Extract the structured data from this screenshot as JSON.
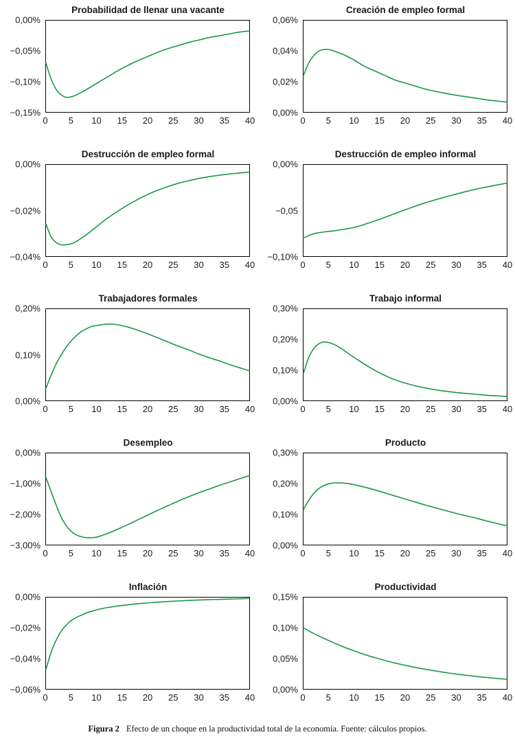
{
  "colors": {
    "line": "#1a9648",
    "axis": "#000000",
    "text": "#1a1a1a"
  },
  "caption": {
    "label": "Figura 2",
    "text": "Efecto de un choque en la productividad total de la economía. Fuente: cálculos propios."
  },
  "chart_data": [
    {
      "type": "line",
      "title": "Probabilidad de llenar una vacante",
      "xlim": [
        0,
        40
      ],
      "ylim": [
        -0.15,
        0
      ],
      "xticks": [
        0,
        5,
        10,
        15,
        20,
        25,
        30,
        35,
        40
      ],
      "yticks": [
        [
          0,
          "0,00%"
        ],
        [
          -0.05,
          "−0,05%"
        ],
        [
          -0.1,
          "−0,10%"
        ],
        [
          -0.15,
          "−0,15%"
        ]
      ],
      "x": [
        0,
        1,
        2,
        3,
        4,
        5,
        6,
        8,
        10,
        12,
        14,
        16,
        18,
        20,
        22,
        24,
        26,
        28,
        30,
        32,
        34,
        36,
        38,
        40
      ],
      "y": [
        -0.07,
        -0.096,
        -0.113,
        -0.122,
        -0.126,
        -0.125,
        -0.122,
        -0.113,
        -0.103,
        -0.093,
        -0.083,
        -0.074,
        -0.066,
        -0.059,
        -0.052,
        -0.046,
        -0.041,
        -0.036,
        -0.032,
        -0.028,
        -0.025,
        -0.022,
        -0.019,
        -0.017
      ]
    },
    {
      "type": "line",
      "title": "Creación de empleo formal",
      "xlim": [
        0,
        40
      ],
      "ylim": [
        0,
        0.06
      ],
      "xticks": [
        0,
        5,
        10,
        15,
        20,
        25,
        30,
        35,
        40
      ],
      "yticks": [
        [
          0.06,
          "0,06%"
        ],
        [
          0.04,
          "0,04%"
        ],
        [
          0.02,
          "0,02%"
        ],
        [
          0,
          "0,00%"
        ]
      ],
      "x": [
        0,
        1,
        2,
        3,
        4,
        5,
        6,
        8,
        10,
        12,
        14,
        16,
        18,
        20,
        22,
        24,
        26,
        28,
        30,
        32,
        34,
        36,
        38,
        40
      ],
      "y": [
        0.024,
        0.032,
        0.037,
        0.04,
        0.041,
        0.041,
        0.04,
        0.0375,
        0.034,
        0.03,
        0.027,
        0.024,
        0.021,
        0.019,
        0.017,
        0.015,
        0.0135,
        0.0122,
        0.011,
        0.01,
        0.009,
        0.008,
        0.0072,
        0.0065
      ]
    },
    {
      "type": "line",
      "title": "Destrucción de empleo formal",
      "xlim": [
        0,
        40
      ],
      "ylim": [
        -0.04,
        0
      ],
      "xticks": [
        0,
        5,
        10,
        15,
        20,
        25,
        30,
        35,
        40
      ],
      "yticks": [
        [
          0,
          "0,00%"
        ],
        [
          -0.02,
          "−0,02%"
        ],
        [
          -0.04,
          "−0,04%"
        ]
      ],
      "x": [
        0,
        1,
        2,
        3,
        4,
        5,
        6,
        8,
        10,
        12,
        14,
        16,
        18,
        20,
        22,
        24,
        26,
        28,
        30,
        32,
        34,
        36,
        38,
        40
      ],
      "y": [
        -0.026,
        -0.0315,
        -0.034,
        -0.035,
        -0.035,
        -0.0345,
        -0.0335,
        -0.0305,
        -0.027,
        -0.0235,
        -0.0205,
        -0.0177,
        -0.0152,
        -0.013,
        -0.0111,
        -0.0095,
        -0.0081,
        -0.007,
        -0.006,
        -0.0052,
        -0.0046,
        -0.004,
        -0.0036,
        -0.0032
      ]
    },
    {
      "type": "line",
      "title": "Destrucción de empleo informal",
      "xlim": [
        0,
        40
      ],
      "ylim": [
        -0.1,
        0
      ],
      "xticks": [
        0,
        5,
        10,
        15,
        20,
        25,
        30,
        35,
        40
      ],
      "yticks": [
        [
          0,
          "0,00%"
        ],
        [
          -0.05,
          "−0,05"
        ],
        [
          -0.1,
          "−0,10%"
        ]
      ],
      "x": [
        0,
        2,
        4,
        6,
        8,
        10,
        12,
        14,
        16,
        18,
        20,
        22,
        24,
        26,
        28,
        30,
        32,
        34,
        36,
        38,
        40
      ],
      "y": [
        -0.08,
        -0.0755,
        -0.0735,
        -0.0722,
        -0.0705,
        -0.0685,
        -0.0652,
        -0.0615,
        -0.0575,
        -0.0533,
        -0.0492,
        -0.0452,
        -0.0415,
        -0.0382,
        -0.035,
        -0.0321,
        -0.0292,
        -0.0266,
        -0.0243,
        -0.0221,
        -0.02
      ]
    },
    {
      "type": "line",
      "title": "Trabajadores formales",
      "xlim": [
        0,
        40
      ],
      "ylim": [
        0,
        0.2
      ],
      "xticks": [
        0,
        5,
        10,
        15,
        20,
        25,
        30,
        35,
        40
      ],
      "yticks": [
        [
          0.2,
          "0,20%"
        ],
        [
          0.1,
          "0,10%"
        ],
        [
          0,
          "0,00%"
        ]
      ],
      "x": [
        0,
        1,
        2,
        3,
        4,
        5,
        6,
        7,
        8,
        9,
        10,
        12,
        14,
        16,
        18,
        20,
        22,
        24,
        26,
        28,
        30,
        32,
        34,
        36,
        38,
        40
      ],
      "y": [
        0.027,
        0.055,
        0.08,
        0.1,
        0.117,
        0.131,
        0.142,
        0.151,
        0.157,
        0.162,
        0.164,
        0.167,
        0.166,
        0.161,
        0.154,
        0.146,
        0.137,
        0.128,
        0.119,
        0.111,
        0.102,
        0.094,
        0.087,
        0.079,
        0.072,
        0.065
      ]
    },
    {
      "type": "line",
      "title": "Trabajo informal",
      "xlim": [
        0,
        40
      ],
      "ylim": [
        0,
        0.3
      ],
      "xticks": [
        0,
        5,
        10,
        15,
        20,
        25,
        30,
        35,
        40
      ],
      "yticks": [
        [
          0.3,
          "0,30%"
        ],
        [
          0.2,
          "0,20%"
        ],
        [
          0.1,
          "0,10%"
        ],
        [
          0,
          "0,00%"
        ]
      ],
      "x": [
        0,
        1,
        2,
        3,
        4,
        5,
        6,
        7,
        8,
        9,
        10,
        12,
        14,
        16,
        18,
        20,
        22,
        24,
        26,
        28,
        30,
        32,
        34,
        36,
        38,
        40
      ],
      "y": [
        0.09,
        0.14,
        0.17,
        0.186,
        0.192,
        0.19,
        0.184,
        0.175,
        0.164,
        0.152,
        0.141,
        0.119,
        0.099,
        0.082,
        0.068,
        0.057,
        0.048,
        0.041,
        0.035,
        0.03,
        0.026,
        0.023,
        0.02,
        0.017,
        0.015,
        0.013
      ]
    },
    {
      "type": "line",
      "title": "Desempleo",
      "xlim": [
        0,
        40
      ],
      "ylim": [
        -3.0,
        0
      ],
      "xticks": [
        0,
        5,
        10,
        15,
        20,
        25,
        30,
        35,
        40
      ],
      "yticks": [
        [
          0,
          "0,00%"
        ],
        [
          -1.0,
          "−1,00%"
        ],
        [
          -2.0,
          "−2,00%"
        ],
        [
          -3.0,
          "−3,00%"
        ]
      ],
      "x": [
        0,
        1,
        2,
        3,
        4,
        5,
        6,
        7,
        8,
        9,
        10,
        12,
        14,
        16,
        18,
        20,
        22,
        24,
        26,
        28,
        30,
        32,
        34,
        36,
        38,
        40
      ],
      "y": [
        -0.8,
        -1.25,
        -1.7,
        -2.1,
        -2.38,
        -2.57,
        -2.68,
        -2.74,
        -2.77,
        -2.77,
        -2.75,
        -2.64,
        -2.5,
        -2.35,
        -2.19,
        -2.03,
        -1.87,
        -1.72,
        -1.57,
        -1.43,
        -1.3,
        -1.18,
        -1.06,
        -0.95,
        -0.84,
        -0.73
      ]
    },
    {
      "type": "line",
      "title": "Producto",
      "xlim": [
        0,
        40
      ],
      "ylim": [
        0,
        0.3
      ],
      "xticks": [
        0,
        5,
        10,
        15,
        20,
        25,
        30,
        35,
        40
      ],
      "yticks": [
        [
          0.3,
          "0,30%"
        ],
        [
          0.2,
          "0,20%"
        ],
        [
          0.1,
          "0,10%"
        ],
        [
          0,
          "0,00%"
        ]
      ],
      "x": [
        0,
        1,
        2,
        3,
        4,
        5,
        6,
        7,
        8,
        9,
        10,
        12,
        14,
        16,
        18,
        20,
        22,
        24,
        26,
        28,
        30,
        32,
        34,
        36,
        38,
        40
      ],
      "y": [
        0.115,
        0.145,
        0.168,
        0.184,
        0.194,
        0.2,
        0.203,
        0.203,
        0.202,
        0.2,
        0.197,
        0.189,
        0.18,
        0.17,
        0.16,
        0.15,
        0.14,
        0.13,
        0.121,
        0.112,
        0.103,
        0.095,
        0.087,
        0.078,
        0.07,
        0.062
      ]
    },
    {
      "type": "line",
      "title": "Inflación",
      "xlim": [
        0,
        40
      ],
      "ylim": [
        -0.06,
        0
      ],
      "xticks": [
        0,
        5,
        10,
        15,
        20,
        25,
        30,
        35,
        40
      ],
      "yticks": [
        [
          0,
          "0,00%"
        ],
        [
          -0.02,
          "−0,02%"
        ],
        [
          -0.04,
          "−0,04%"
        ],
        [
          -0.06,
          "−0,06%"
        ]
      ],
      "x": [
        0,
        1,
        2,
        3,
        4,
        5,
        6,
        7,
        8,
        9,
        10,
        12,
        14,
        16,
        18,
        20,
        22,
        24,
        26,
        28,
        30,
        32,
        34,
        36,
        38,
        40
      ],
      "y": [
        -0.047,
        -0.036,
        -0.028,
        -0.022,
        -0.018,
        -0.015,
        -0.013,
        -0.0115,
        -0.01,
        -0.009,
        -0.008,
        -0.0066,
        -0.0056,
        -0.0048,
        -0.0041,
        -0.0035,
        -0.003,
        -0.0026,
        -0.0022,
        -0.0019,
        -0.0016,
        -0.0014,
        -0.0012,
        -0.001,
        -0.0008,
        -0.0006
      ]
    },
    {
      "type": "line",
      "title": "Productividad",
      "xlim": [
        0,
        40
      ],
      "ylim": [
        0,
        0.15
      ],
      "xticks": [
        0,
        5,
        10,
        15,
        20,
        25,
        30,
        35,
        40
      ],
      "yticks": [
        [
          0.15,
          "0,15%"
        ],
        [
          0.1,
          "0,10%"
        ],
        [
          0.05,
          "0,05%"
        ],
        [
          0,
          "0,00%"
        ]
      ],
      "x": [
        0,
        2,
        4,
        6,
        8,
        10,
        12,
        14,
        16,
        18,
        20,
        22,
        24,
        26,
        28,
        30,
        32,
        34,
        36,
        38,
        40
      ],
      "y": [
        0.1,
        0.091,
        0.083,
        0.0755,
        0.0685,
        0.0625,
        0.0565,
        0.0515,
        0.0468,
        0.0425,
        0.0388,
        0.0353,
        0.0322,
        0.0294,
        0.0268,
        0.0245,
        0.0224,
        0.0205,
        0.0188,
        0.0173,
        0.0158
      ]
    }
  ]
}
